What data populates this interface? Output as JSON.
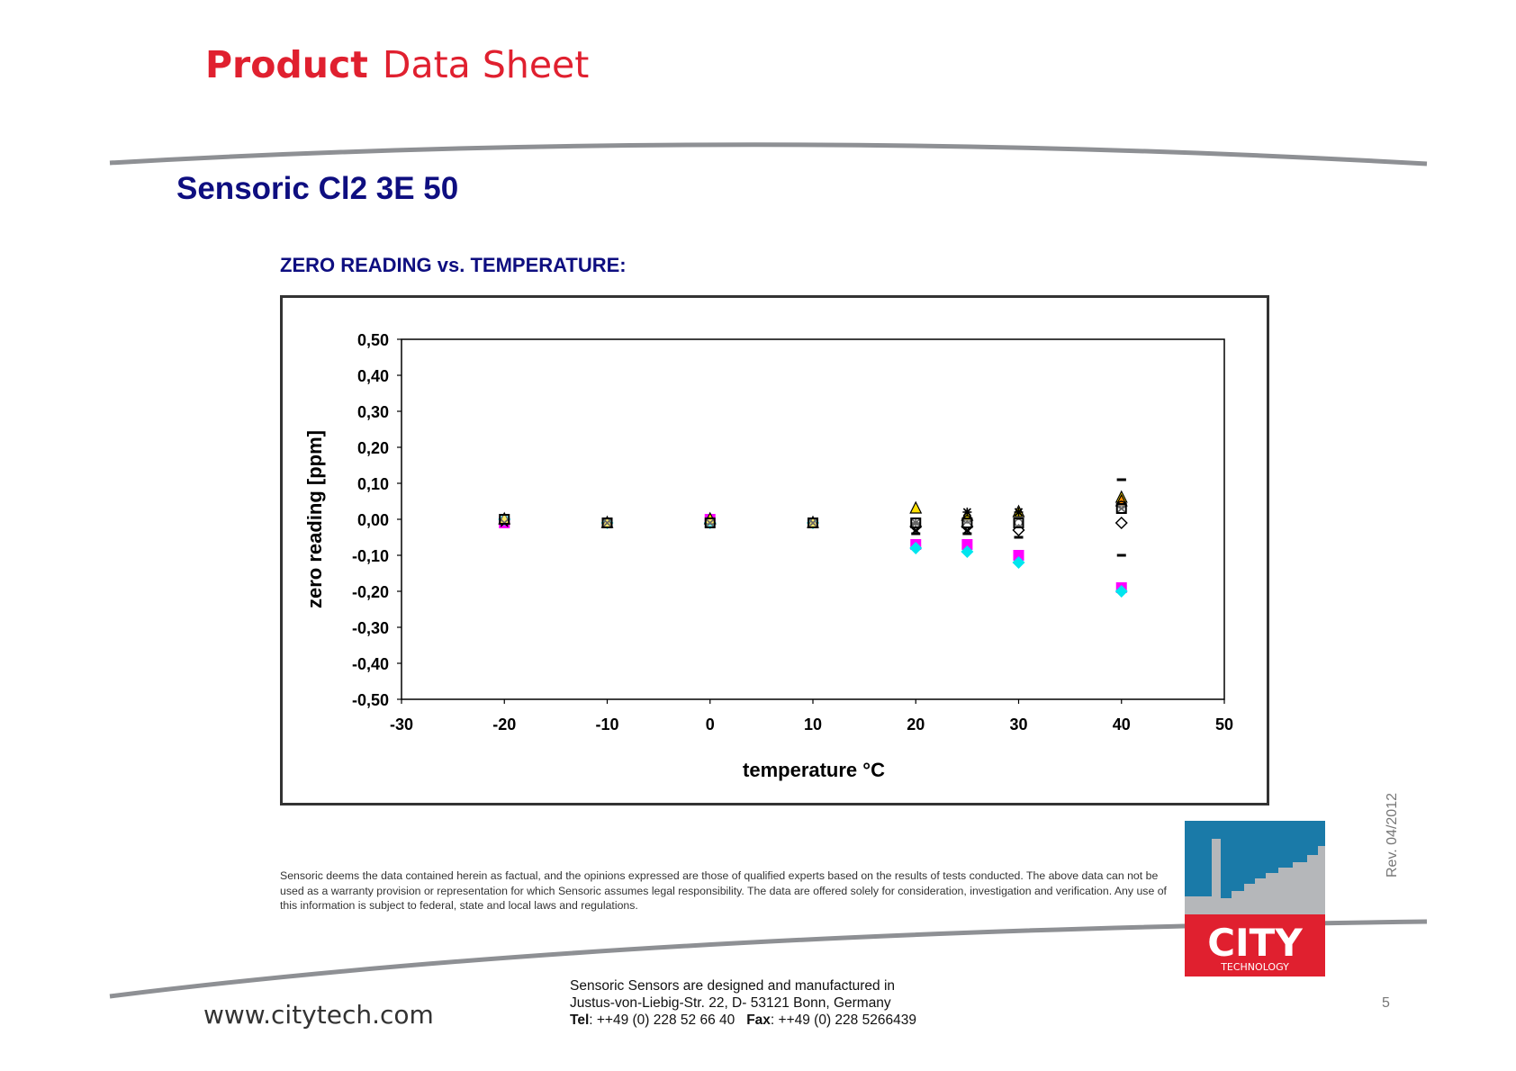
{
  "header": {
    "title_bold": "Product",
    "title_rest": "Data Sheet"
  },
  "product_name": "Sensoric Cl2 3E 50",
  "chart_title": "ZERO READING vs. TEMPERATURE:",
  "disclaimer": "Sensoric deems the data contained herein as factual, and the opinions expressed are those of qualified experts based on the results of tests conducted. The above data can not be used as a warranty provision or representation for which Sensoric assumes legal responsibility. The data are offered solely for consideration, investigation and verification. Any use of this information is subject to federal, state and local laws and regulations.",
  "revision": "Rev. 04/2012",
  "footer": {
    "url": "www.citytech.com",
    "address_line1": "Sensoric Sensors are designed and manufactured in",
    "address_line2": "Justus-von-Liebig-Str. 22, D- 53121 Bonn, Germany",
    "tel_label": "Tel",
    "tel_value": ": ++49 (0) 228 52 66 40",
    "fax_label": "Fax",
    "fax_value": ": ++49 (0) 228 5266439",
    "page_number": "5"
  },
  "logo": {
    "word": "CITY",
    "subword": "TECHNOLOGY",
    "colors": {
      "red": "#e0202f",
      "blue": "#1a7aa8",
      "grey": "#b5b7ba"
    }
  },
  "chart_data": {
    "type": "scatter",
    "xlabel": "temperature °C",
    "ylabel": "zero reading [ppm]",
    "xlim": [
      -30,
      50
    ],
    "ylim": [
      -0.5,
      0.5
    ],
    "x_ticks": [
      -30,
      -20,
      -10,
      0,
      10,
      20,
      30,
      40,
      50
    ],
    "x_tick_labels": [
      "-30",
      "-20",
      "-10",
      "0",
      "10",
      "20",
      "30",
      "40",
      "50"
    ],
    "y_ticks": [
      0.5,
      0.4,
      0.3,
      0.2,
      0.1,
      0.0,
      -0.1,
      -0.2,
      -0.3,
      -0.4,
      -0.5
    ],
    "y_tick_labels": [
      "0,50",
      "0,40",
      "0,30",
      "0,20",
      "0,10",
      "0,00",
      "-0,10",
      "-0,20",
      "-0,30",
      "-0,40",
      "-0,50"
    ],
    "grid": false,
    "legend": "none",
    "series": [
      {
        "marker": "square-filled",
        "color": "#ff00ff",
        "points": [
          [
            -20,
            -0.01
          ],
          [
            -10,
            -0.01
          ],
          [
            0,
            0.0
          ],
          [
            10,
            -0.01
          ],
          [
            20,
            -0.07
          ],
          [
            25,
            -0.07
          ],
          [
            30,
            -0.1
          ],
          [
            40,
            -0.19
          ]
        ]
      },
      {
        "marker": "diamond-filled",
        "color": "#00e5ee",
        "points": [
          [
            -20,
            0.0
          ],
          [
            -10,
            -0.01
          ],
          [
            0,
            -0.01
          ],
          [
            10,
            -0.01
          ],
          [
            20,
            -0.08
          ],
          [
            25,
            -0.09
          ],
          [
            30,
            -0.12
          ],
          [
            40,
            -0.2
          ]
        ]
      },
      {
        "marker": "triangle",
        "color": "#ffe000",
        "points": [
          [
            -20,
            0.0
          ],
          [
            -10,
            -0.01
          ],
          [
            0,
            0.0
          ],
          [
            10,
            -0.01
          ],
          [
            20,
            0.03
          ],
          [
            25,
            0.01
          ],
          [
            30,
            0.02
          ],
          [
            40,
            0.06
          ]
        ]
      },
      {
        "marker": "triangle",
        "color": "#ff8c00",
        "points": [
          [
            40,
            0.05
          ]
        ]
      },
      {
        "marker": "x",
        "color": "#000000",
        "points": [
          [
            -20,
            -0.01
          ],
          [
            -10,
            -0.01
          ],
          [
            0,
            -0.01
          ],
          [
            10,
            -0.01
          ],
          [
            20,
            -0.03
          ],
          [
            25,
            -0.03
          ],
          [
            30,
            0.02
          ],
          [
            40,
            0.03
          ]
        ]
      },
      {
        "marker": "star",
        "color": "#000000",
        "points": [
          [
            20,
            -0.01
          ],
          [
            25,
            0.02
          ],
          [
            30,
            0.02
          ]
        ]
      },
      {
        "marker": "dash",
        "color": "#000000",
        "points": [
          [
            20,
            -0.04
          ],
          [
            25,
            -0.04
          ],
          [
            30,
            -0.05
          ],
          [
            40,
            0.11
          ],
          [
            40,
            0.11
          ],
          [
            40,
            -0.1
          ]
        ]
      },
      {
        "marker": "diamond",
        "color": "#000000",
        "points": [
          [
            20,
            -0.02
          ],
          [
            25,
            -0.02
          ],
          [
            30,
            -0.03
          ],
          [
            40,
            -0.01
          ]
        ]
      },
      {
        "marker": "circle",
        "color": "#000000",
        "points": [
          [
            25,
            0.0
          ],
          [
            30,
            -0.01
          ],
          [
            40,
            0.04
          ]
        ]
      },
      {
        "marker": "square",
        "color": "#000000",
        "points": [
          [
            -20,
            0.0
          ],
          [
            -10,
            -0.01
          ],
          [
            0,
            -0.01
          ],
          [
            10,
            -0.01
          ],
          [
            20,
            -0.01
          ],
          [
            25,
            -0.01
          ],
          [
            30,
            -0.01
          ],
          [
            40,
            0.03
          ]
        ]
      }
    ]
  }
}
